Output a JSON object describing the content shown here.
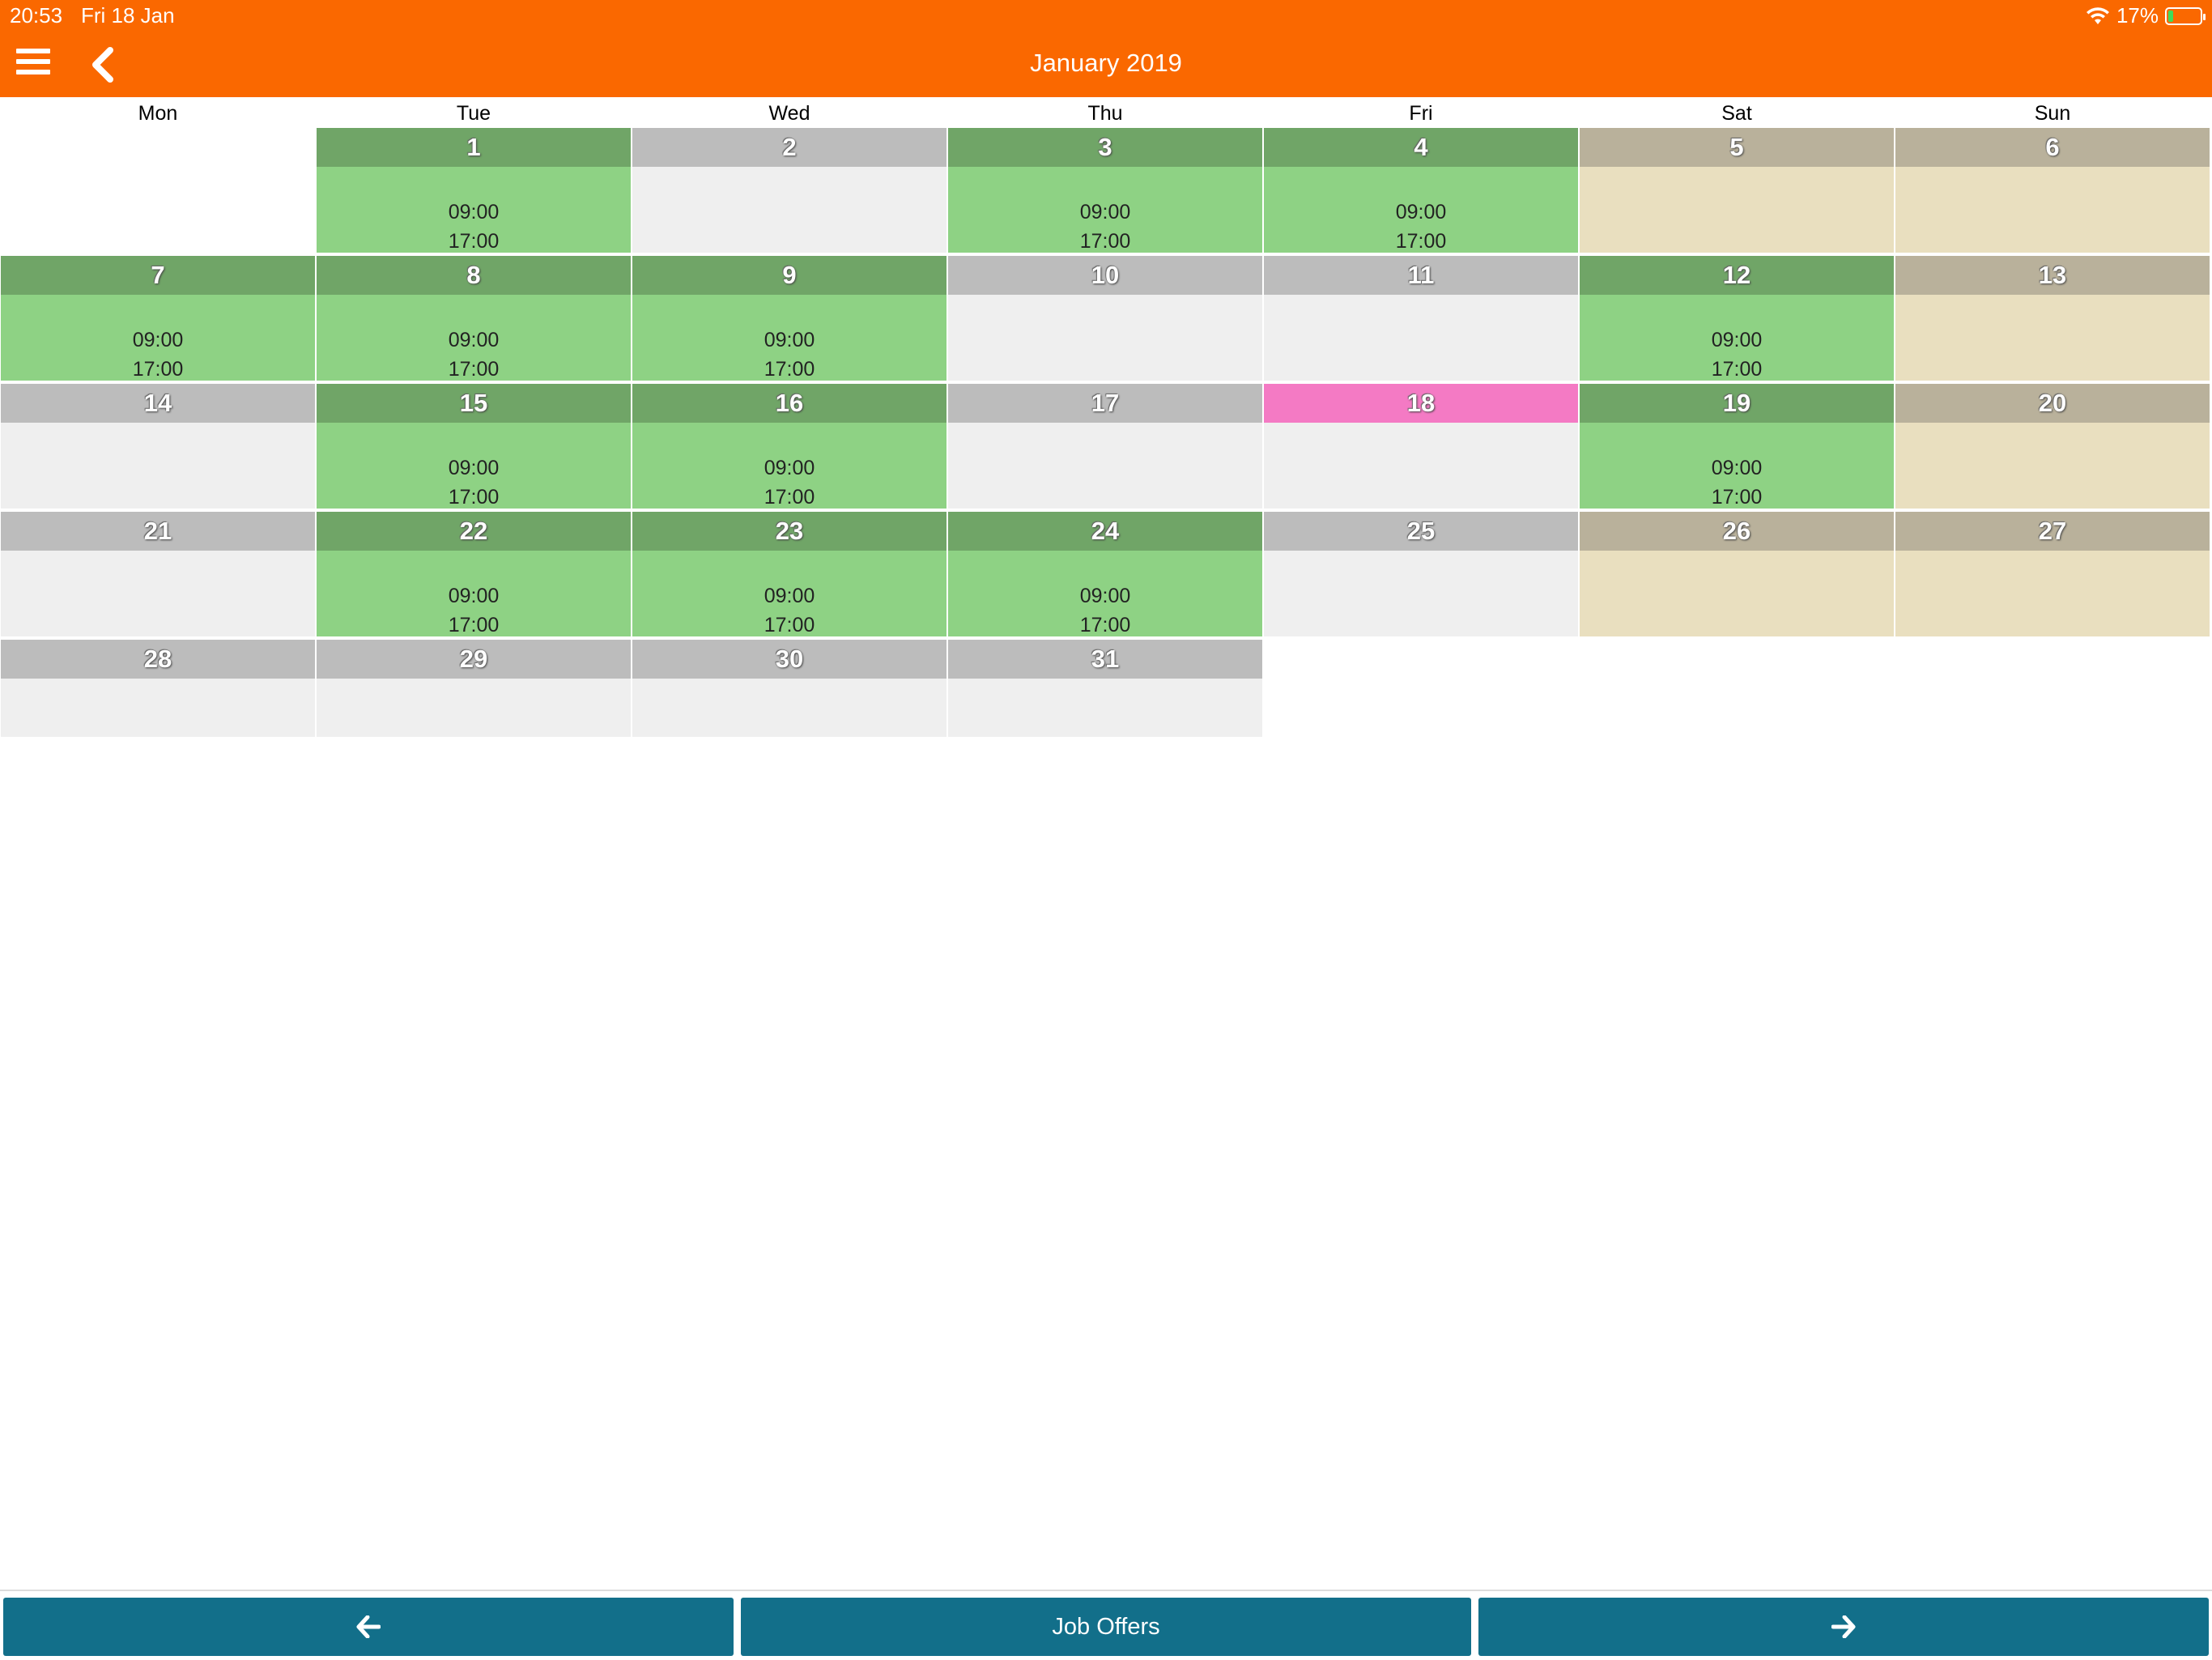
{
  "status_bar": {
    "time": "20:53",
    "date": "Fri 18 Jan",
    "battery": "17%",
    "battery_level": 0.17
  },
  "header": {
    "title": "January 2019",
    "menu_icon": "hamburger-menu-icon",
    "back_icon": "chevron-left-icon"
  },
  "weekdays": [
    "Mon",
    "Tue",
    "Wed",
    "Thu",
    "Fri",
    "Sat",
    "Sun"
  ],
  "calendar": {
    "month": "January 2019",
    "colors": {
      "work_header": "#70a567",
      "work_body": "#8ed284",
      "empty_header": "#bcbcbc",
      "empty_body": "#efefef",
      "weekend_header": "#b9b19b",
      "weekend_body": "#e9dfbf",
      "today_header": "#f47ac4"
    },
    "days": [
      {
        "day": "1",
        "type": "work",
        "start": "09:00",
        "end": "17:00"
      },
      {
        "day": "2",
        "type": "empty"
      },
      {
        "day": "3",
        "type": "work",
        "start": "09:00",
        "end": "17:00"
      },
      {
        "day": "4",
        "type": "work",
        "start": "09:00",
        "end": "17:00"
      },
      {
        "day": "5",
        "type": "weekend"
      },
      {
        "day": "6",
        "type": "weekend"
      },
      {
        "day": "7",
        "type": "work",
        "start": "09:00",
        "end": "17:00"
      },
      {
        "day": "8",
        "type": "work",
        "start": "09:00",
        "end": "17:00"
      },
      {
        "day": "9",
        "type": "work",
        "start": "09:00",
        "end": "17:00"
      },
      {
        "day": "10",
        "type": "empty"
      },
      {
        "day": "11",
        "type": "empty"
      },
      {
        "day": "12",
        "type": "work",
        "start": "09:00",
        "end": "17:00"
      },
      {
        "day": "13",
        "type": "weekend"
      },
      {
        "day": "14",
        "type": "empty"
      },
      {
        "day": "15",
        "type": "work",
        "start": "09:00",
        "end": "17:00"
      },
      {
        "day": "16",
        "type": "work",
        "start": "09:00",
        "end": "17:00"
      },
      {
        "day": "17",
        "type": "empty"
      },
      {
        "day": "18",
        "type": "today"
      },
      {
        "day": "19",
        "type": "work",
        "start": "09:00",
        "end": "17:00"
      },
      {
        "day": "20",
        "type": "weekend"
      },
      {
        "day": "21",
        "type": "empty"
      },
      {
        "day": "22",
        "type": "work",
        "start": "09:00",
        "end": "17:00"
      },
      {
        "day": "23",
        "type": "work",
        "start": "09:00",
        "end": "17:00"
      },
      {
        "day": "24",
        "type": "work",
        "start": "09:00",
        "end": "17:00"
      },
      {
        "day": "25",
        "type": "empty"
      },
      {
        "day": "26",
        "type": "weekend"
      },
      {
        "day": "27",
        "type": "weekend"
      },
      {
        "day": "28",
        "type": "empty"
      },
      {
        "day": "29",
        "type": "empty"
      },
      {
        "day": "30",
        "type": "empty"
      },
      {
        "day": "31",
        "type": "empty"
      }
    ]
  },
  "footer": {
    "prev_icon": "arrow-left-icon",
    "center_label": "Job Offers",
    "next_icon": "arrow-right-icon"
  }
}
